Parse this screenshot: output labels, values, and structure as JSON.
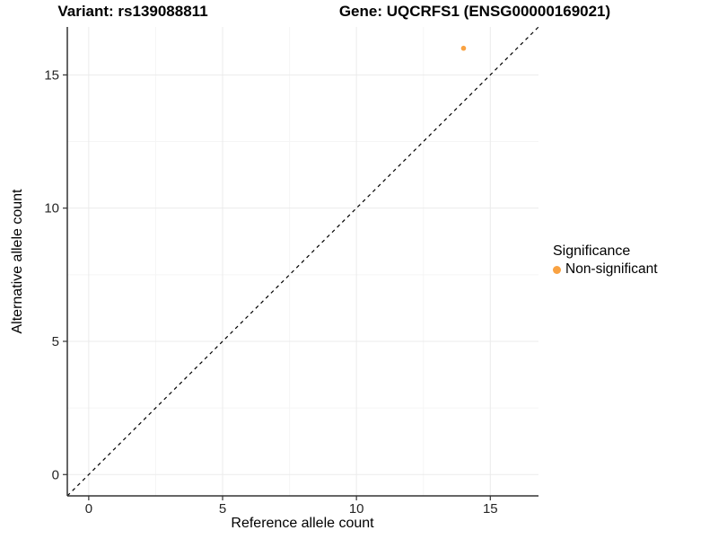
{
  "figure": {
    "title_variant": "Variant: rs139088811",
    "title_gene": "Gene: UQCRFS1 (ENSG00000169021)"
  },
  "legend": {
    "title": "Significance",
    "items": [
      {
        "label": "Non-significant",
        "color": "#F9A242"
      }
    ]
  },
  "chart_data": {
    "type": "scatter",
    "titles": [
      "Variant: rs139088811",
      "Gene: UQCRFS1 (ENSG00000169021)"
    ],
    "xlabel": "Reference allele count",
    "ylabel": "Alternative allele count",
    "xlim": [
      -0.8,
      16.8
    ],
    "ylim": [
      -0.8,
      16.8
    ],
    "xticks": [
      0,
      5,
      10,
      15
    ],
    "yticks": [
      0,
      5,
      10,
      15
    ],
    "xminor": [
      2.5,
      7.5,
      12.5
    ],
    "yminor": [
      2.5,
      7.5,
      12.5
    ],
    "grid": "major+minor",
    "legend_position": "right",
    "series": [
      {
        "name": "Non-significant",
        "color": "#F9A242",
        "points": [
          [
            14,
            16
          ]
        ]
      }
    ],
    "reference_line": {
      "kind": "y=x",
      "linetype": "dashed",
      "color": "#000000"
    },
    "colors": {
      "axis": "#333333",
      "grid_major": "#EBEBEB",
      "grid_minor": "#F5F5F5",
      "tick_label": "#262626"
    }
  }
}
